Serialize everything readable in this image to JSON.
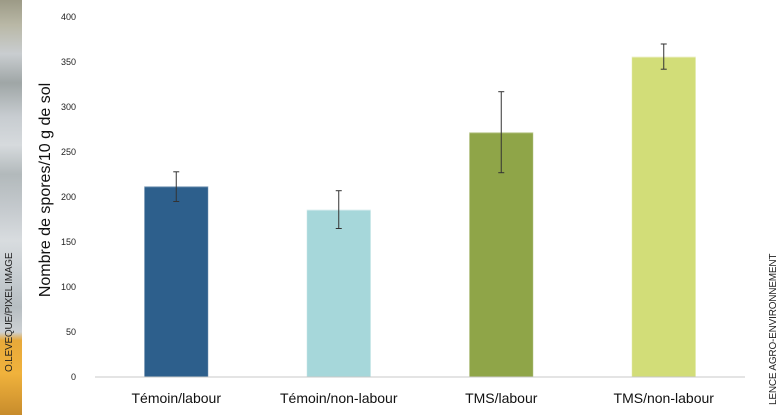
{
  "credits": {
    "left": "O.LEVEQUE/PIXEL IMAGE",
    "right": "LENCE AGRO-ENVIRONNEMENT"
  },
  "chart_data": {
    "type": "bar",
    "title": "",
    "xlabel": "",
    "ylabel": "Nombre de spores/10 g de sol",
    "ylim": [
      0,
      400
    ],
    "yticks": [
      0,
      50,
      100,
      150,
      200,
      250,
      300,
      350,
      400
    ],
    "categories": [
      "Témoin/labour",
      "Témoin/non-labour",
      "TMS/labour",
      "TMS/non-labour"
    ],
    "values": [
      212,
      186,
      272,
      356
    ],
    "error_low": [
      195,
      165,
      227,
      342
    ],
    "error_high": [
      228,
      207,
      317,
      370
    ],
    "colors": [
      "#2d5f8c",
      "#a6d7da",
      "#8fa548",
      "#d2dd78"
    ],
    "grid": false,
    "legend": "none"
  }
}
